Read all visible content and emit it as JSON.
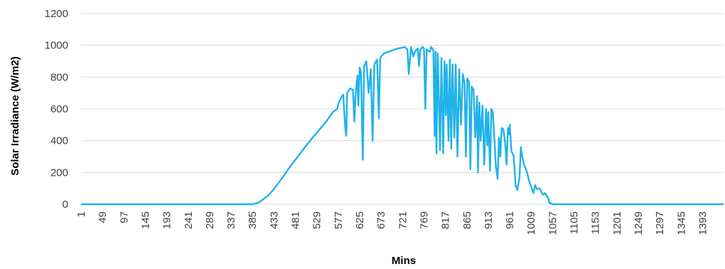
{
  "chart_data": {
    "type": "line",
    "title": "",
    "xlabel": "Mins",
    "ylabel": "Solar Irradiance (W/m2)",
    "ylim": [
      0,
      1200
    ],
    "yticks": [
      0,
      200,
      400,
      600,
      800,
      1000,
      1200
    ],
    "grid": true,
    "legend": "none",
    "x_tick_labels": [
      "1",
      "49",
      "97",
      "145",
      "193",
      "241",
      "289",
      "337",
      "385",
      "433",
      "481",
      "529",
      "577",
      "625",
      "673",
      "721",
      "769",
      "817",
      "865",
      "913",
      "961",
      "1009",
      "1057",
      "1105",
      "1153",
      "1201",
      "1249",
      "1297",
      "1345",
      "1393"
    ],
    "xlim": [
      1,
      1440
    ],
    "series": [
      {
        "color": "#1fb2e8",
        "points": [
          [
            1,
            0
          ],
          [
            385,
            0
          ],
          [
            400,
            12
          ],
          [
            420,
            55
          ],
          [
            433,
            95
          ],
          [
            450,
            160
          ],
          [
            470,
            240
          ],
          [
            481,
            280
          ],
          [
            500,
            350
          ],
          [
            520,
            420
          ],
          [
            529,
            450
          ],
          [
            550,
            520
          ],
          [
            560,
            560
          ],
          [
            565,
            580
          ],
          [
            575,
            600
          ],
          [
            577,
            630
          ],
          [
            585,
            680
          ],
          [
            588,
            690
          ],
          [
            593,
            470
          ],
          [
            595,
            430
          ],
          [
            597,
            700
          ],
          [
            604,
            730
          ],
          [
            610,
            720
          ],
          [
            613,
            520
          ],
          [
            616,
            700
          ],
          [
            620,
            810
          ],
          [
            622,
            620
          ],
          [
            625,
            860
          ],
          [
            628,
            830
          ],
          [
            632,
            280
          ],
          [
            635,
            870
          ],
          [
            640,
            900
          ],
          [
            645,
            700
          ],
          [
            650,
            850
          ],
          [
            654,
            400
          ],
          [
            658,
            880
          ],
          [
            664,
            910
          ],
          [
            668,
            540
          ],
          [
            671,
            920
          ],
          [
            673,
            930
          ],
          [
            680,
            950
          ],
          [
            690,
            960
          ],
          [
            700,
            970
          ],
          [
            710,
            980
          ],
          [
            721,
            985
          ],
          [
            725,
            990
          ],
          [
            732,
            975
          ],
          [
            735,
            820
          ],
          [
            740,
            990
          ],
          [
            745,
            930
          ],
          [
            750,
            965
          ],
          [
            755,
            980
          ],
          [
            758,
            870
          ],
          [
            761,
            975
          ],
          [
            766,
            990
          ],
          [
            769,
            980
          ],
          [
            772,
            600
          ],
          [
            775,
            975
          ],
          [
            778,
            965
          ],
          [
            782,
            960
          ],
          [
            785,
            990
          ],
          [
            790,
            970
          ],
          [
            793,
            430
          ],
          [
            795,
            960
          ],
          [
            797,
            320
          ],
          [
            800,
            950
          ],
          [
            805,
            340
          ],
          [
            808,
            920
          ],
          [
            812,
            320
          ],
          [
            815,
            900
          ],
          [
            818,
            560
          ],
          [
            820,
            880
          ],
          [
            824,
            400
          ],
          [
            827,
            910
          ],
          [
            830,
            350
          ],
          [
            833,
            880
          ],
          [
            837,
            420
          ],
          [
            840,
            880
          ],
          [
            844,
            300
          ],
          [
            848,
            850
          ],
          [
            852,
            500
          ],
          [
            856,
            820
          ],
          [
            860,
            760
          ],
          [
            863,
            300
          ],
          [
            866,
            790
          ],
          [
            870,
            770
          ],
          [
            873,
            220
          ],
          [
            876,
            740
          ],
          [
            880,
            720
          ],
          [
            884,
            420
          ],
          [
            888,
            680
          ],
          [
            890,
            200
          ],
          [
            893,
            640
          ],
          [
            896,
            400
          ],
          [
            900,
            620
          ],
          [
            904,
            250
          ],
          [
            908,
            600
          ],
          [
            911,
            370
          ],
          [
            913,
            580
          ],
          [
            917,
            210
          ],
          [
            920,
            600
          ],
          [
            923,
            580
          ],
          [
            926,
            450
          ],
          [
            930,
            240
          ],
          [
            934,
            160
          ],
          [
            937,
            420
          ],
          [
            940,
            300
          ],
          [
            943,
            480
          ],
          [
            947,
            470
          ],
          [
            951,
            380
          ],
          [
            954,
            250
          ],
          [
            957,
            480
          ],
          [
            960,
            440
          ],
          [
            961,
            500
          ],
          [
            965,
            330
          ],
          [
            968,
            320
          ],
          [
            970,
            300
          ],
          [
            974,
            120
          ],
          [
            978,
            90
          ],
          [
            983,
            170
          ],
          [
            986,
            360
          ],
          [
            989,
            300
          ],
          [
            993,
            250
          ],
          [
            996,
            230
          ],
          [
            1000,
            200
          ],
          [
            1004,
            150
          ],
          [
            1009,
            110
          ],
          [
            1014,
            70
          ],
          [
            1018,
            120
          ],
          [
            1022,
            95
          ],
          [
            1028,
            100
          ],
          [
            1035,
            60
          ],
          [
            1040,
            70
          ],
          [
            1047,
            40
          ],
          [
            1050,
            10
          ],
          [
            1057,
            0
          ],
          [
            1440,
            0
          ]
        ]
      }
    ]
  }
}
